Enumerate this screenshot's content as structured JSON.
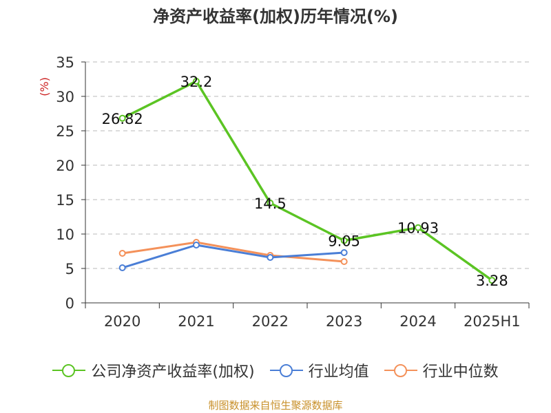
{
  "title": "净资产收益率(加权)历年情况(%)",
  "source": "制图数据来自恒生聚源数据库",
  "chart_data": {
    "type": "line",
    "categories": [
      "2020",
      "2021",
      "2022",
      "2023",
      "2024",
      "2025H1"
    ],
    "ylabel": "(%)",
    "ylim": [
      0,
      35
    ],
    "yticks": [
      0,
      5,
      10,
      15,
      20,
      25,
      30,
      35
    ],
    "grid": true,
    "legend_position": "bottom",
    "series": [
      {
        "name": "公司净资产收益率(加权)",
        "color": "#5bc423",
        "values": [
          26.82,
          32.2,
          14.5,
          9.05,
          10.93,
          3.28
        ],
        "labels": [
          "26.82",
          "32.2",
          "14.5",
          "9.05",
          "10.93",
          "3.28"
        ]
      },
      {
        "name": "行业均值",
        "color": "#4a7ed6",
        "values": [
          5.1,
          8.4,
          6.6,
          7.3,
          null,
          null
        ]
      },
      {
        "name": "行业中位数",
        "color": "#f4915a",
        "values": [
          7.2,
          8.8,
          6.9,
          6.0,
          null,
          null
        ]
      }
    ]
  }
}
